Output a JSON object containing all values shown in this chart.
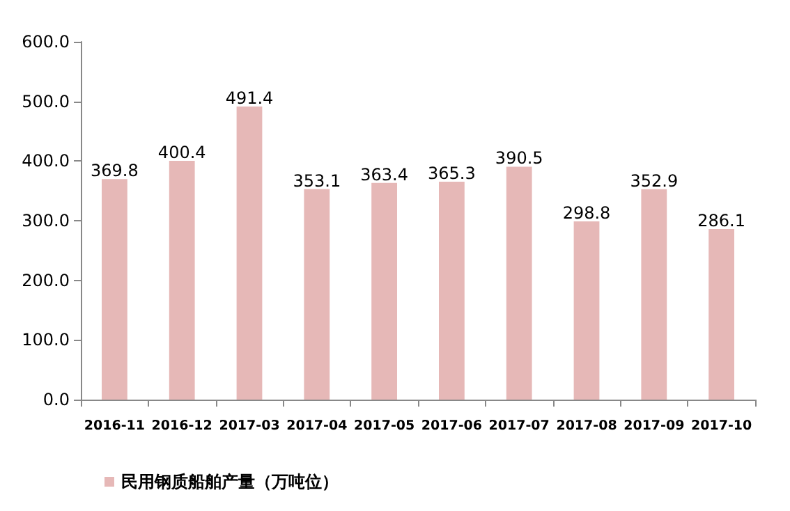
{
  "chart_data": {
    "type": "bar",
    "categories": [
      "2016-11",
      "2016-12",
      "2017-03",
      "2017-04",
      "2017-05",
      "2017-06",
      "2017-07",
      "2017-08",
      "2017-09",
      "2017-10"
    ],
    "series": [
      {
        "name": "民用钢质船舶产量（万吨位）",
        "color": "#e6b8b7",
        "values": [
          369.8,
          400.4,
          491.4,
          353.1,
          363.4,
          365.3,
          390.5,
          298.8,
          352.9,
          286.1
        ]
      }
    ],
    "ylim": [
      0,
      600
    ],
    "yticks": [
      {
        "value": 0,
        "label": "0.0"
      },
      {
        "value": 100,
        "label": "100.0"
      },
      {
        "value": 200,
        "label": "200.0"
      },
      {
        "value": 300,
        "label": "300.0"
      },
      {
        "value": 400,
        "label": "400.0"
      },
      {
        "value": 500,
        "label": "500.0"
      },
      {
        "value": 600,
        "label": "600.0"
      }
    ],
    "data_labels": true,
    "grid": false,
    "legend": "bottom left"
  }
}
